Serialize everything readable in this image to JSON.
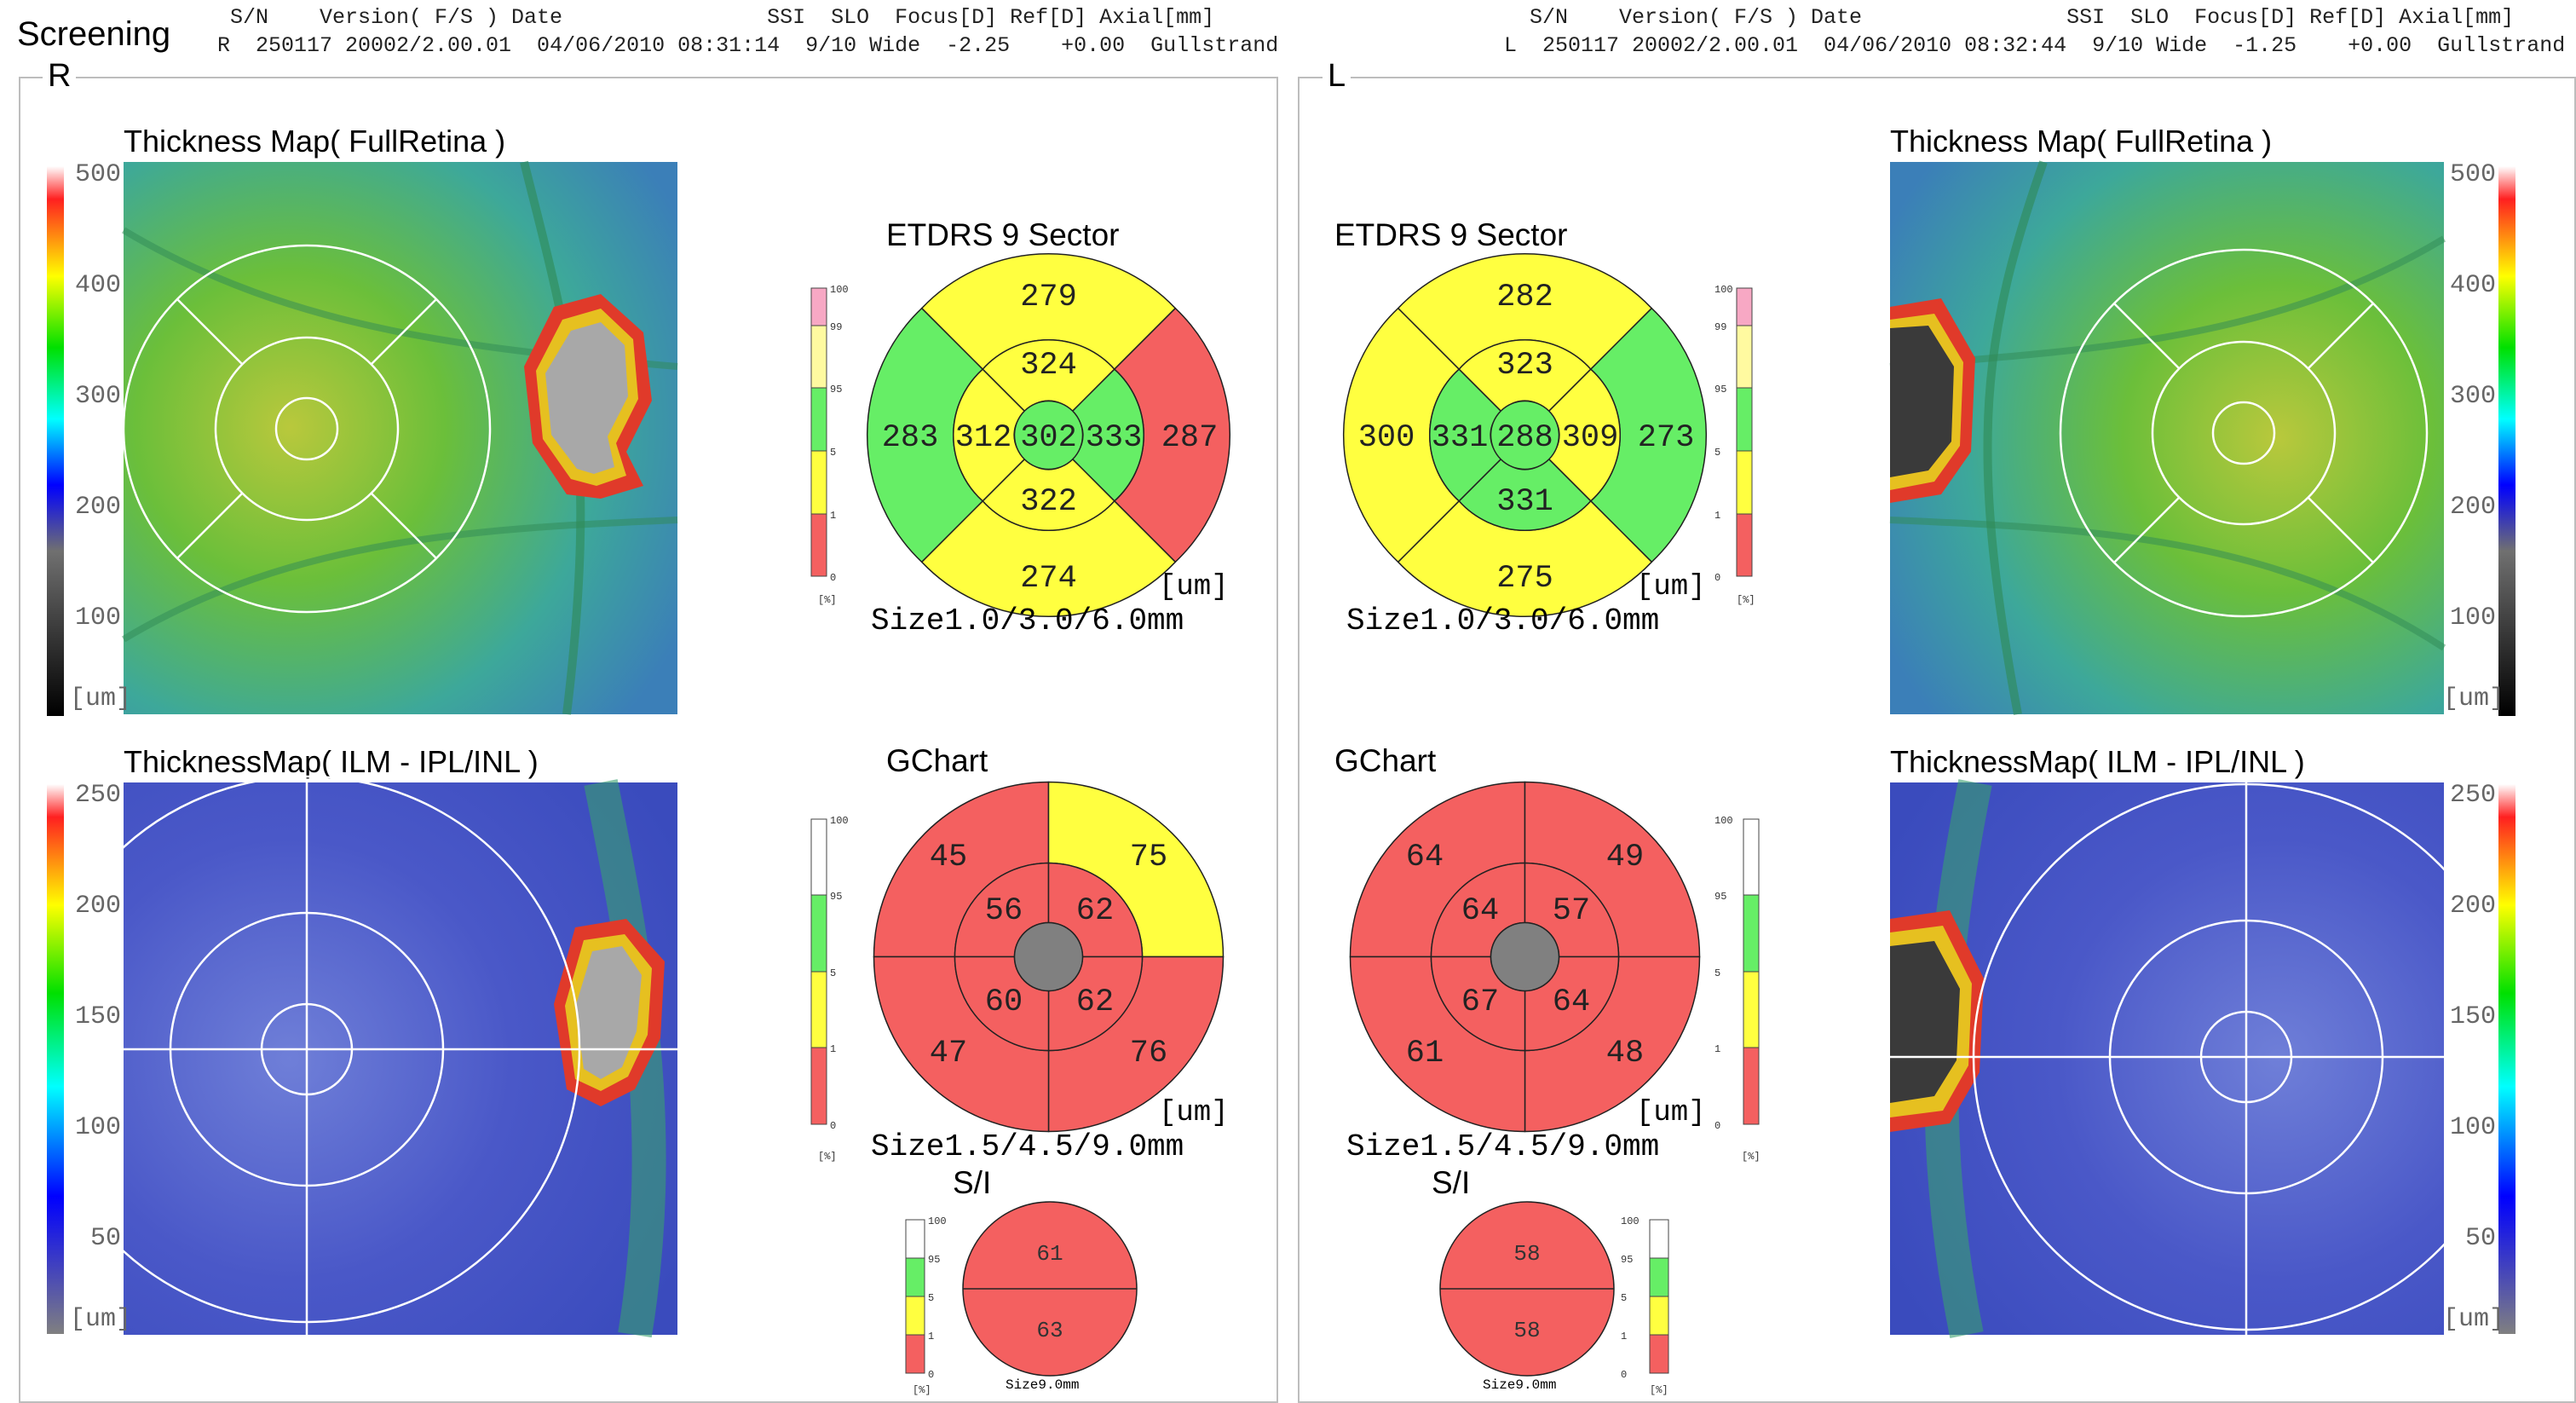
{
  "app_title": "Screening",
  "colors": {
    "red": "#f46060",
    "yellow": "#ffff40",
    "green": "#66ee66",
    "pink": "#f7a8c4",
    "lightyellow": "#fffaa0",
    "gray": "#808080"
  },
  "header": {
    "right": {
      "labels": "S/N    Version( F/S ) Date                SSI  SLO  Focus[D] Ref[D] Axial[mm]",
      "values": "R  250117 20002/2.00.01  04/06/2010 08:31:14  9/10 Wide  -2.25    +0.00  Gullstrand"
    },
    "left": {
      "labels": "S/N    Version( F/S ) Date                SSI  SLO  Focus[D] Ref[D] Axial[mm]",
      "values": "L  250117 20002/2.00.01  04/06/2010 08:32:44  9/10 Wide  -1.25    +0.00  Gullstrand"
    }
  },
  "right_eye": {
    "label": "R",
    "map1_title": "Thickness Map( FullRetina )",
    "map2_title": "ThicknessMap( ILM - IPL/INL )",
    "etdrs": {
      "title": "ETDRS 9 Sector",
      "unit": "[um]",
      "size": "Size1.0/3.0/6.0mm",
      "outer": {
        "top": "279",
        "right": "287",
        "bottom": "274",
        "left": "283"
      },
      "inner": {
        "top": "324",
        "right": "333",
        "bottom": "322",
        "left": "312"
      },
      "center": "302",
      "outer_colors": {
        "top": "yellow",
        "right": "red",
        "bottom": "yellow",
        "left": "green"
      },
      "inner_colors": {
        "top": "yellow",
        "right": "green",
        "bottom": "yellow",
        "left": "yellow"
      },
      "center_color": "green"
    },
    "gchart": {
      "title": "GChart",
      "unit": "[um]",
      "size": "Size1.5/4.5/9.0mm",
      "outer": {
        "tl": "45",
        "tr": "75",
        "bl": "47",
        "br": "76"
      },
      "inner": {
        "tl": "56",
        "tr": "62",
        "bl": "60",
        "br": "62"
      },
      "outer_colors": {
        "tl": "red",
        "tr": "yellow",
        "bl": "red",
        "br": "red"
      },
      "inner_colors": {
        "tl": "red",
        "tr": "red",
        "bl": "red",
        "br": "red"
      }
    },
    "si": {
      "title": "S/I",
      "top": "61",
      "bottom": "63",
      "size": "Size9.0mm"
    }
  },
  "left_eye": {
    "label": "L",
    "map1_title": "Thickness Map( FullRetina )",
    "map2_title": "ThicknessMap( ILM - IPL/INL )",
    "etdrs": {
      "title": "ETDRS 9 Sector",
      "unit": "[um]",
      "size": "Size1.0/3.0/6.0mm",
      "outer": {
        "top": "282",
        "right": "273",
        "bottom": "275",
        "left": "300"
      },
      "inner": {
        "top": "323",
        "right": "309",
        "bottom": "331",
        "left": "331"
      },
      "center": "288",
      "outer_colors": {
        "top": "yellow",
        "right": "green",
        "bottom": "yellow",
        "left": "yellow"
      },
      "inner_colors": {
        "top": "yellow",
        "right": "yellow",
        "bottom": "green",
        "left": "green"
      },
      "center_color": "green"
    },
    "gchart": {
      "title": "GChart",
      "unit": "[um]",
      "size": "Size1.5/4.5/9.0mm",
      "outer": {
        "tl": "64",
        "tr": "49",
        "bl": "61",
        "br": "48"
      },
      "inner": {
        "tl": "64",
        "tr": "57",
        "bl": "67",
        "br": "64"
      },
      "outer_colors": {
        "tl": "red",
        "tr": "red",
        "bl": "red",
        "br": "red"
      },
      "inner_colors": {
        "tl": "red",
        "tr": "red",
        "bl": "red",
        "br": "red"
      }
    },
    "si": {
      "title": "S/I",
      "top": "58",
      "bottom": "58",
      "size": "Size9.0mm"
    }
  },
  "scales": {
    "full": {
      "ticks": [
        "500",
        "400",
        "300",
        "200",
        "100"
      ],
      "unit": "[um]"
    },
    "gcl": {
      "ticks": [
        "250",
        "200",
        "150",
        "100",
        "50"
      ],
      "unit": "[um]"
    }
  },
  "legend": {
    "etdrs": {
      "ticks": [
        "100",
        "99",
        "95",
        "5",
        "1",
        "0"
      ],
      "unit": "[%]"
    },
    "gchart": {
      "ticks": [
        "100",
        "95",
        "5",
        "1",
        "0"
      ],
      "unit": "[%]"
    }
  }
}
